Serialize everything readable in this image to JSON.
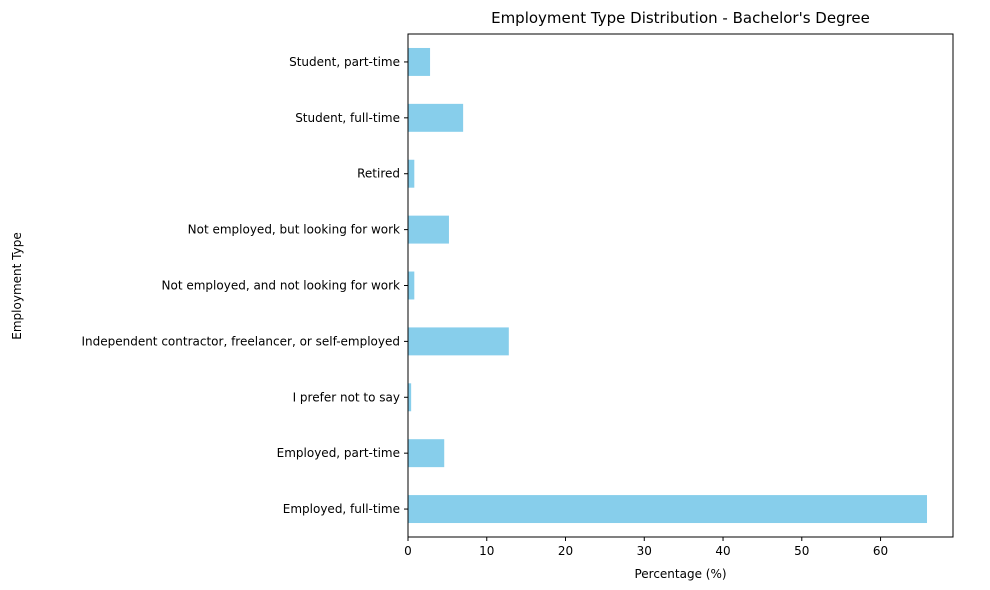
{
  "chart_data": {
    "type": "bar",
    "orientation": "horizontal",
    "title": "Employment Type Distribution - Bachelor's Degree",
    "xlabel": "Percentage (%)",
    "ylabel": "Employment Type",
    "categories": [
      "Employed, full-time",
      "Employed, part-time",
      "I prefer not to say",
      "Independent contractor, freelancer, or self-employed",
      "Not employed, and not looking for work",
      "Not employed, but looking for work",
      "Retired",
      "Student, full-time",
      "Student, part-time"
    ],
    "values": [
      65.9,
      4.6,
      0.4,
      12.8,
      0.8,
      5.2,
      0.8,
      7.0,
      2.8
    ],
    "xlim": [
      0,
      69.2
    ],
    "xticks": [
      0,
      10,
      20,
      30,
      40,
      50,
      60
    ],
    "bar_color": "#87ceeb",
    "grid": false,
    "legend": "none"
  }
}
